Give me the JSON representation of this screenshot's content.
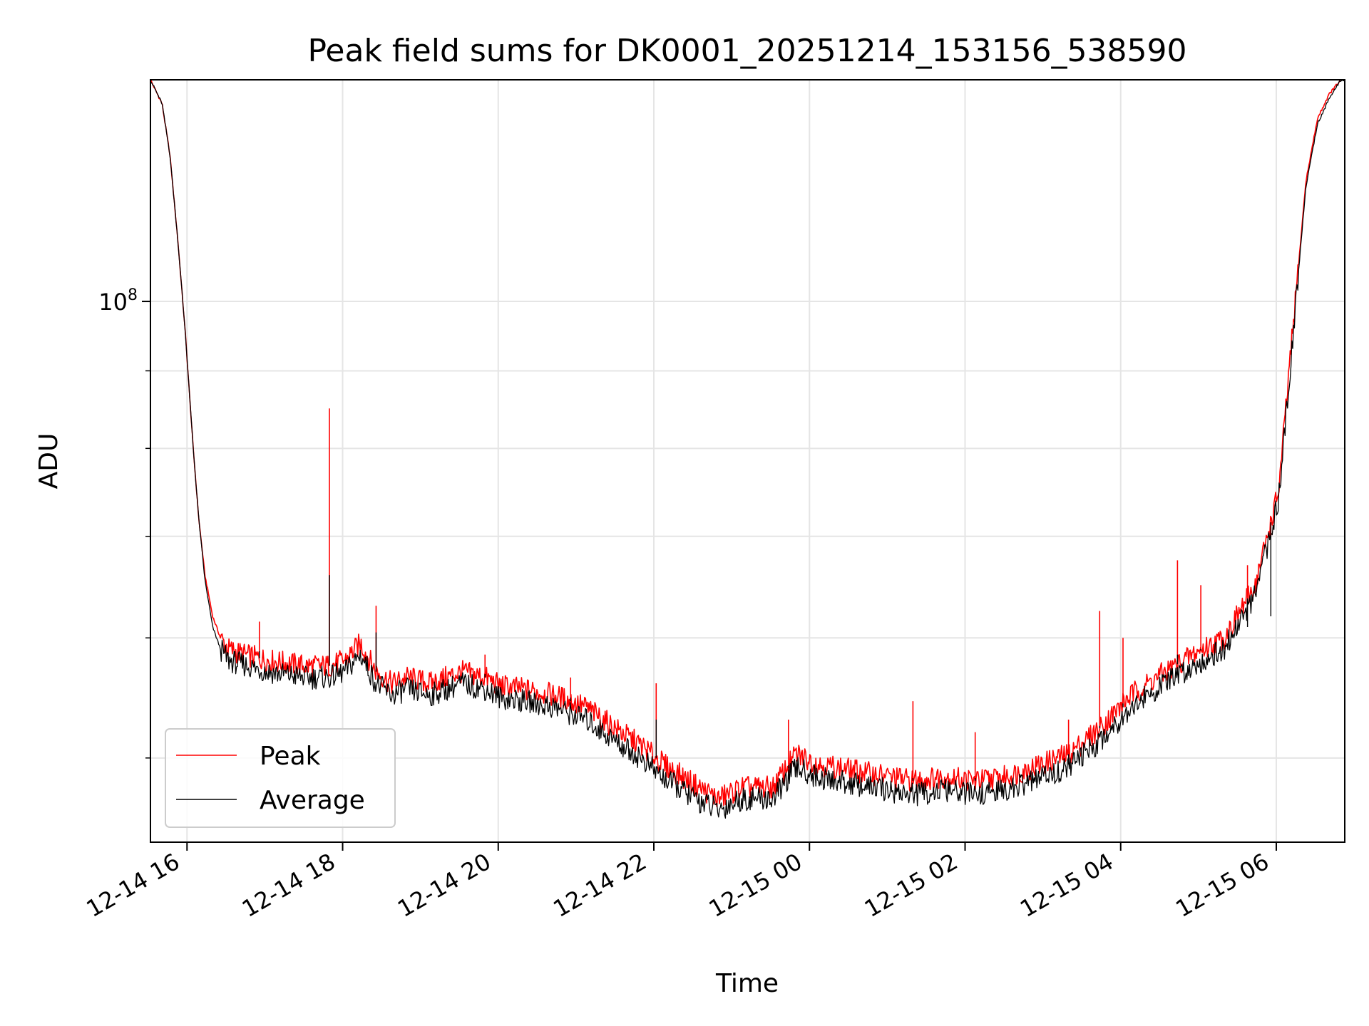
{
  "chart_data": {
    "type": "line",
    "title": "Peak field sums for DK0001_20251214_153156_538590",
    "xlabel": "Time",
    "ylabel": "ADU",
    "yscale": "log",
    "grid": true,
    "legend_position": "lower-left",
    "x_unit": "hours since 12-14 15:31",
    "xlim": [
      0,
      15.35
    ],
    "ylim": [
      44000000,
      140000000
    ],
    "x_ticks": [
      {
        "value": 0.47,
        "label": "12-14 16"
      },
      {
        "value": 2.47,
        "label": "12-14 18"
      },
      {
        "value": 4.47,
        "label": "12-14 20"
      },
      {
        "value": 6.47,
        "label": "12-14 22"
      },
      {
        "value": 8.47,
        "label": "12-15 00"
      },
      {
        "value": 10.47,
        "label": "12-15 02"
      },
      {
        "value": 12.47,
        "label": "12-15 04"
      },
      {
        "value": 14.47,
        "label": "12-15 06"
      }
    ],
    "y_major_ticks": [
      {
        "value": 100000000,
        "base": "10",
        "exponent": "8"
      }
    ],
    "y_minor_ticks": [
      50000000,
      60000000,
      70000000,
      80000000,
      90000000,
      200000000
    ],
    "x": [
      0.0,
      0.15,
      0.25,
      0.35,
      0.45,
      0.55,
      0.62,
      0.7,
      0.8,
      0.9,
      1.0,
      1.2,
      1.5,
      2.0,
      2.3,
      2.5,
      2.7,
      2.9,
      3.1,
      3.3,
      3.6,
      4.0,
      4.3,
      4.5,
      4.8,
      5.2,
      5.6,
      6.0,
      6.3,
      6.6,
      7.0,
      7.3,
      7.6,
      7.8,
      8.0,
      8.3,
      8.6,
      8.9,
      9.2,
      9.5,
      9.8,
      10.2,
      10.6,
      11.0,
      11.3,
      11.8,
      12.2,
      12.6,
      13.0,
      13.4,
      13.8,
      14.2,
      14.5,
      14.7,
      14.85,
      15.0,
      15.15,
      15.3
    ],
    "series": [
      {
        "name": "Peak",
        "color": "#ff0000",
        "values": [
          140000000,
          135000000,
          125000000,
          110000000,
          95000000,
          80000000,
          72000000,
          66000000,
          62000000,
          60000000,
          59000000,
          58500000,
          58000000,
          57500000,
          57500000,
          58000000,
          59500000,
          57000000,
          56000000,
          56500000,
          56000000,
          57000000,
          56500000,
          55800000,
          55500000,
          55000000,
          54000000,
          52200000,
          51000000,
          49500000,
          48000000,
          47000000,
          47800000,
          47800000,
          47800000,
          50300000,
          49500000,
          49200000,
          48900000,
          48600000,
          48300000,
          48600000,
          48300000,
          48600000,
          49200000,
          50300000,
          52300000,
          55000000,
          56800000,
          58500000,
          60000000,
          65000000,
          75000000,
          98000000,
          120000000,
          132000000,
          137000000,
          140000000
        ]
      },
      {
        "name": "Average",
        "color": "#000000",
        "values": [
          140000000,
          135000000,
          125000000,
          110000000,
          95000000,
          80000000,
          72000000,
          65500000,
          61000000,
          59000000,
          58000000,
          57600000,
          57000000,
          56500000,
          56500000,
          57000000,
          58500000,
          56000000,
          55000000,
          55500000,
          55000000,
          56000000,
          55500000,
          54800000,
          54500000,
          54000000,
          53000000,
          51200000,
          50000000,
          48500000,
          47000000,
          46200000,
          47000000,
          47000000,
          47000000,
          49300000,
          48500000,
          48200000,
          47900000,
          47600000,
          47300000,
          47600000,
          47300000,
          47600000,
          48200000,
          49300000,
          51300000,
          54000000,
          55800000,
          57500000,
          59000000,
          64000000,
          74000000,
          97000000,
          119000000,
          131000000,
          136000000,
          140000000
        ]
      }
    ],
    "spikes": [
      {
        "x": 2.3,
        "peak": 85000000,
        "average": 66000000
      },
      {
        "x": 2.9,
        "peak": 63000000,
        "average": 60500000
      },
      {
        "x": 1.4,
        "peak": 61500000,
        "average": 58800000
      },
      {
        "x": 4.3,
        "peak": 58500000,
        "average": 56800000
      },
      {
        "x": 5.4,
        "peak": 56500000,
        "average": 54800000
      },
      {
        "x": 6.5,
        "peak": 56000000,
        "average": 53000000
      },
      {
        "x": 8.2,
        "peak": 53000000,
        "average": 49200000
      },
      {
        "x": 9.8,
        "peak": 54500000,
        "average": 48500000
      },
      {
        "x": 10.6,
        "peak": 52000000,
        "average": 48500000
      },
      {
        "x": 11.8,
        "peak": 53000000,
        "average": 49500000
      },
      {
        "x": 12.2,
        "peak": 62500000,
        "average": 52500000
      },
      {
        "x": 12.5,
        "peak": 60000000,
        "average": 54000000
      },
      {
        "x": 13.2,
        "peak": 67500000,
        "average": 58500000
      },
      {
        "x": 13.5,
        "peak": 65000000,
        "average": 59000000
      },
      {
        "x": 14.1,
        "peak": 67000000,
        "average": 61000000
      },
      {
        "x": 14.4,
        "peak": 70000000,
        "average": 62000000
      }
    ]
  }
}
